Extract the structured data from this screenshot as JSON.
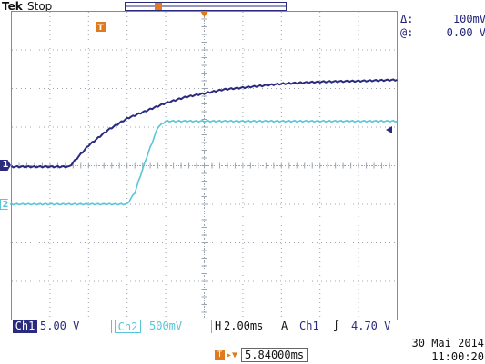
{
  "header": {
    "brand": "Tek",
    "status": "Stop"
  },
  "cursor": {
    "delta_symbol": "Δ:",
    "delta_value": "100mV",
    "at_symbol": "@:",
    "at_value": "0.00 V"
  },
  "markers": {
    "ch1": "1",
    "ch2": "2",
    "trigger_t": "T"
  },
  "status_bar": {
    "ch1_label": "Ch1",
    "ch1_scale": "5.00 V",
    "ch2_label": "Ch2",
    "ch2_scale": "500mV",
    "h_label": "H",
    "h_scale": "2.00ms",
    "a_label": "A",
    "trig_source": "Ch1",
    "trig_slope": "∫",
    "trig_level": "4.70 V"
  },
  "delay": {
    "label": "T",
    "value": "5.84000ms"
  },
  "datetime": {
    "date": "30 Mai  2014",
    "time": "11:00:20"
  },
  "colors": {
    "ch1": "#2a2a7e",
    "ch2": "#58c6d8",
    "trigger": "#e07b1d",
    "grid": "#9aa4b0",
    "frame": "#8a8a8a"
  },
  "chart_data": {
    "type": "line",
    "x_divisions": 10,
    "y_divisions": 8,
    "x_per_div_ms": 2.0,
    "series": [
      {
        "name": "Ch1",
        "x_div": [
          0,
          1.5,
          2.0,
          2.5,
          3.0,
          3.5,
          4.0,
          4.5,
          5.0,
          5.5,
          6.0,
          7.0,
          8.0,
          9.0,
          10.0
        ],
        "y_div": [
          0,
          0,
          0.55,
          0.95,
          1.25,
          1.45,
          1.65,
          1.8,
          1.9,
          2.0,
          2.05,
          2.15,
          2.2,
          2.22,
          2.25
        ]
      },
      {
        "name": "Ch2",
        "x_div": [
          0,
          3.0,
          3.2,
          3.5,
          3.8,
          4.0,
          5.0,
          7.0,
          10.0
        ],
        "y_div": [
          -1.0,
          -1.0,
          -0.7,
          0.2,
          1.0,
          1.15,
          1.15,
          1.15,
          1.15
        ]
      }
    ]
  }
}
